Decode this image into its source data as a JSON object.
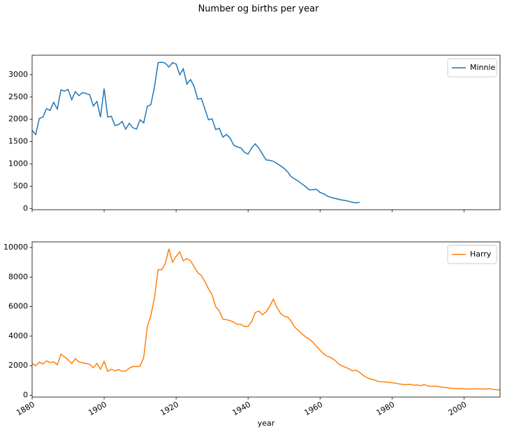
{
  "title": "Number og births per year",
  "chart_data": [
    {
      "type": "line",
      "legend": "upper right",
      "xtick_labels": false,
      "x": [
        1880,
        1881,
        1882,
        1883,
        1884,
        1885,
        1886,
        1887,
        1888,
        1889,
        1890,
        1891,
        1892,
        1893,
        1894,
        1895,
        1896,
        1897,
        1898,
        1899,
        1900,
        1901,
        1902,
        1903,
        1904,
        1905,
        1906,
        1907,
        1908,
        1909,
        1910,
        1911,
        1912,
        1913,
        1914,
        1915,
        1916,
        1917,
        1918,
        1919,
        1920,
        1921,
        1922,
        1923,
        1924,
        1925,
        1926,
        1927,
        1928,
        1929,
        1930,
        1931,
        1932,
        1933,
        1934,
        1935,
        1936,
        1937,
        1938,
        1939,
        1940,
        1941,
        1942,
        1943,
        1944,
        1945,
        1946,
        1947,
        1948,
        1949,
        1950,
        1951,
        1952,
        1953,
        1954,
        1955,
        1956,
        1957,
        1958,
        1959,
        1960,
        1961,
        1962,
        1963,
        1964,
        1965,
        1966,
        1967,
        1968,
        1969,
        1970,
        1971
      ],
      "series": [
        {
          "name": "Minnie",
          "color": "#1f77b4",
          "values": [
            1750,
            1660,
            2020,
            2050,
            2240,
            2200,
            2380,
            2230,
            2660,
            2630,
            2670,
            2440,
            2620,
            2530,
            2600,
            2580,
            2550,
            2300,
            2400,
            2050,
            2690,
            2050,
            2070,
            1860,
            1880,
            1950,
            1780,
            1910,
            1810,
            1780,
            1990,
            1920,
            2290,
            2330,
            2730,
            3270,
            3280,
            3260,
            3170,
            3270,
            3240,
            3000,
            3130,
            2790,
            2890,
            2740,
            2450,
            2470,
            2230,
            1990,
            2010,
            1770,
            1800,
            1600,
            1660,
            1580,
            1420,
            1380,
            1360,
            1260,
            1220,
            1360,
            1450,
            1350,
            1220,
            1090,
            1080,
            1060,
            1010,
            960,
            900,
            820,
            710,
            660,
            610,
            550,
            490,
            420,
            420,
            430,
            360,
            330,
            280,
            250,
            230,
            210,
            190,
            180,
            160,
            140,
            130,
            140
          ]
        }
      ],
      "xlim": [
        1880,
        2010
      ],
      "xticks": [
        1880,
        1900,
        1920,
        1940,
        1960,
        1980,
        2000
      ],
      "ylim": [
        -27,
        3437
      ],
      "yticks": [
        0,
        500,
        1000,
        1500,
        2000,
        2500,
        3000
      ]
    },
    {
      "type": "line",
      "legend": "upper right",
      "xtick_labels": true,
      "xlabel": "year",
      "x": [
        1880,
        1881,
        1882,
        1883,
        1884,
        1885,
        1886,
        1887,
        1888,
        1889,
        1890,
        1891,
        1892,
        1893,
        1894,
        1895,
        1896,
        1897,
        1898,
        1899,
        1900,
        1901,
        1902,
        1903,
        1904,
        1905,
        1906,
        1907,
        1908,
        1909,
        1910,
        1911,
        1912,
        1913,
        1914,
        1915,
        1916,
        1917,
        1918,
        1919,
        1920,
        1921,
        1922,
        1923,
        1924,
        1925,
        1926,
        1927,
        1928,
        1929,
        1930,
        1931,
        1932,
        1933,
        1934,
        1935,
        1936,
        1937,
        1938,
        1939,
        1940,
        1941,
        1942,
        1943,
        1944,
        1945,
        1946,
        1947,
        1948,
        1949,
        1950,
        1951,
        1952,
        1953,
        1954,
        1955,
        1956,
        1957,
        1958,
        1959,
        1960,
        1961,
        1962,
        1963,
        1964,
        1965,
        1966,
        1967,
        1968,
        1969,
        1970,
        1971,
        1972,
        1973,
        1974,
        1975,
        1976,
        1977,
        1978,
        1979,
        1980,
        1981,
        1982,
        1983,
        1984,
        1985,
        1986,
        1987,
        1988,
        1989,
        1990,
        1991,
        1992,
        1993,
        1994,
        1995,
        1996,
        1997,
        1998,
        1999,
        2000,
        2001,
        2002,
        2003,
        2004,
        2005,
        2006,
        2007,
        2008,
        2009,
        2010
      ],
      "series": [
        {
          "name": "Harry",
          "color": "#ff7f0e",
          "values": [
            2160,
            2000,
            2250,
            2120,
            2330,
            2220,
            2260,
            2060,
            2780,
            2600,
            2400,
            2150,
            2480,
            2260,
            2200,
            2150,
            2100,
            1860,
            2150,
            1770,
            2290,
            1620,
            1770,
            1650,
            1740,
            1620,
            1640,
            1840,
            1950,
            1940,
            1980,
            2550,
            4650,
            5400,
            6600,
            8500,
            8500,
            8900,
            9900,
            9000,
            9400,
            9700,
            9100,
            9250,
            9100,
            8700,
            8300,
            8100,
            7700,
            7200,
            6800,
            6000,
            5700,
            5150,
            5120,
            5050,
            4950,
            4800,
            4800,
            4650,
            4650,
            5000,
            5600,
            5700,
            5450,
            5650,
            6000,
            6500,
            5950,
            5550,
            5350,
            5300,
            5000,
            4600,
            4380,
            4150,
            3950,
            3800,
            3600,
            3300,
            3050,
            2800,
            2650,
            2550,
            2400,
            2150,
            2000,
            1900,
            1800,
            1650,
            1700,
            1550,
            1350,
            1200,
            1100,
            1050,
            950,
            920,
            900,
            880,
            850,
            820,
            770,
            740,
            720,
            750,
            680,
            700,
            650,
            730,
            620,
            610,
            630,
            580,
            540,
            520,
            490,
            470,
            450,
            470,
            440,
            420,
            440,
            430,
            430,
            440,
            420,
            450,
            400,
            380,
            360
          ]
        }
      ],
      "xlim": [
        1880,
        2010
      ],
      "xticks": [
        1880,
        1900,
        1920,
        1940,
        1960,
        1980,
        2000
      ],
      "ylim": [
        -117,
        10377
      ],
      "yticks": [
        0,
        2000,
        4000,
        6000,
        8000,
        10000
      ]
    }
  ]
}
